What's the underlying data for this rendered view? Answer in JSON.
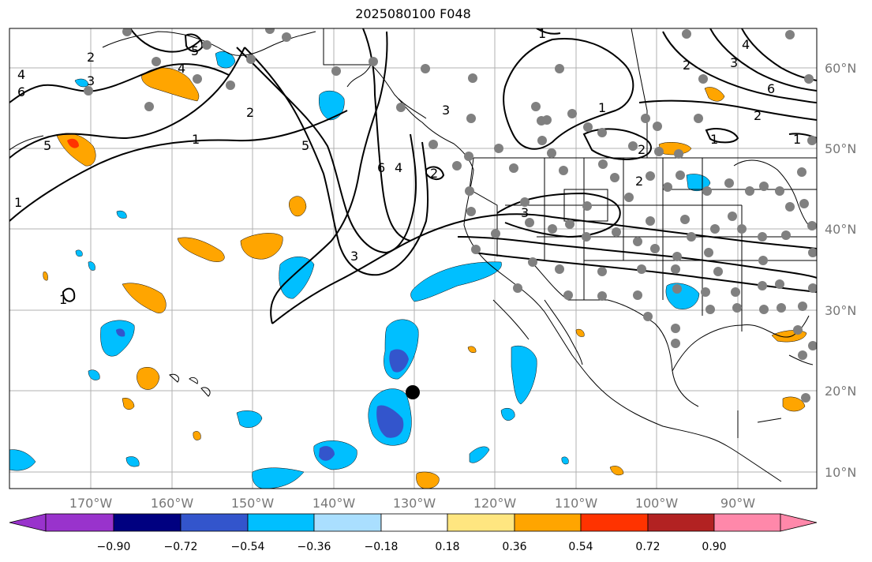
{
  "title": "2025080100 F048",
  "x_ticks": [
    "170°W",
    "160°W",
    "150°W",
    "140°W",
    "130°W",
    "120°W",
    "110°W",
    "100°W",
    "90°W"
  ],
  "y_ticks": [
    "60°N",
    "50°N",
    "40°N",
    "30°N",
    "20°N",
    "10°N"
  ],
  "colorbar": {
    "labels": [
      "−0.90",
      "−0.72",
      "−0.54",
      "−0.36",
      "−0.18",
      "0.18",
      "0.36",
      "0.54",
      "0.72",
      "0.90"
    ],
    "colors": [
      "#9933cc",
      "#000080",
      "#3355cc",
      "#00bfff",
      "#aadfff",
      "#ffffff",
      "#ffe680",
      "#ffa500",
      "#ff3300",
      "#b22222",
      "#ff88aa"
    ]
  },
  "contour_labels": [
    "1",
    "2",
    "3",
    "4",
    "5",
    "6"
  ],
  "marker": {
    "lon": -130.4,
    "lat": 20.0
  },
  "stations_color": "#808080"
}
